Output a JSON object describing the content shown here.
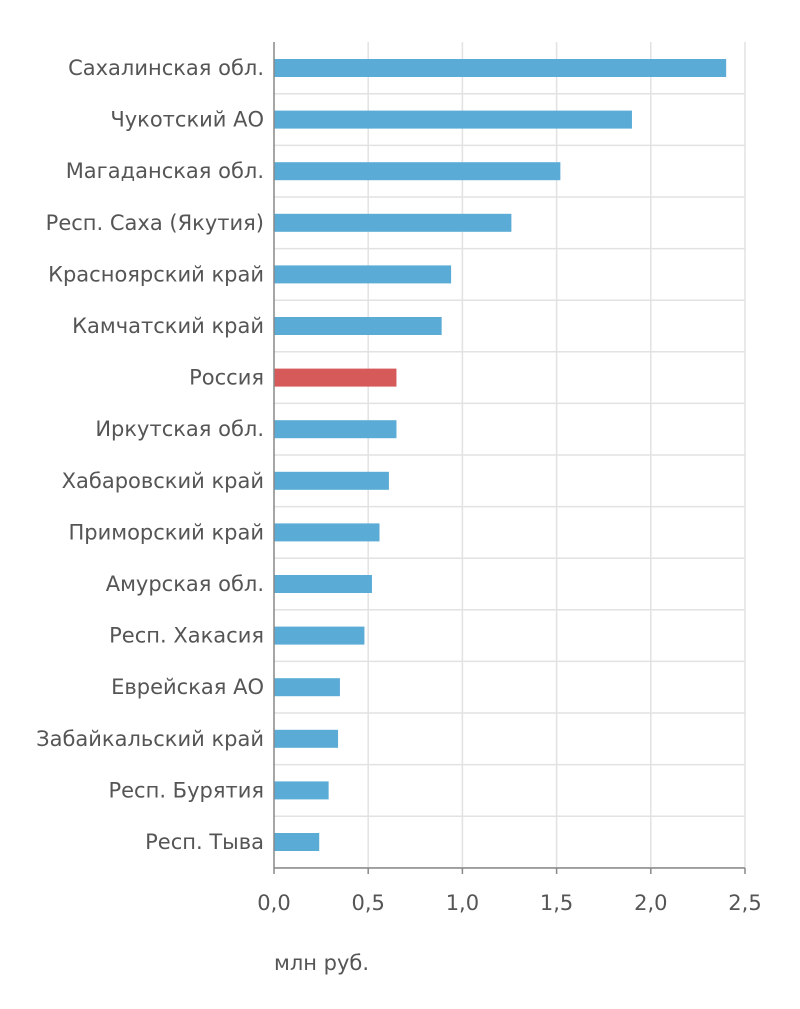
{
  "chart_data": {
    "type": "bar",
    "orientation": "horizontal",
    "categories": [
      "Сахалинская обл.",
      "Чукотский АО",
      "Магаданская обл.",
      "Респ. Саха (Якутия)",
      "Красноярский край",
      "Камчатский край",
      "Россия",
      "Иркутская обл.",
      "Хабаровский край",
      "Приморский край",
      "Амурская обл.",
      "Респ. Хакасия",
      "Еврейская АО",
      "Забайкальский край",
      "Респ. Бурятия",
      "Респ. Тыва"
    ],
    "values": [
      2.4,
      1.9,
      1.52,
      1.26,
      0.94,
      0.89,
      0.65,
      0.65,
      0.61,
      0.56,
      0.52,
      0.48,
      0.35,
      0.34,
      0.29,
      0.24
    ],
    "highlight_category": "Россия",
    "xlim": [
      0,
      2.5
    ],
    "xticks": [
      "0,0",
      "0,5",
      "1,0",
      "1,5",
      "2,0",
      "2,5"
    ],
    "xtick_values": [
      0,
      0.5,
      1.0,
      1.5,
      2.0,
      2.5
    ],
    "unit_label": "млн руб.",
    "grid": true,
    "colors": {
      "bar": "#5aacd6",
      "highlight": "#d65a5a",
      "grid": "#e2e2e2",
      "axis": "#888888",
      "text": "#555555"
    }
  }
}
